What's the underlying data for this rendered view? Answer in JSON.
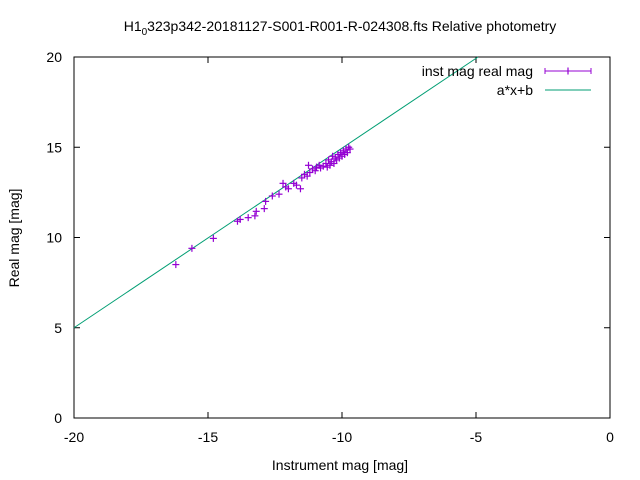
{
  "chart_data": {
    "type": "scatter",
    "title": {
      "prefix": "H1",
      "subscript": "0",
      "suffix": "323p342-20181127-S001-R001-R-024308.fts Relative photometry"
    },
    "xlabel": "Instrument mag [mag]",
    "ylabel": "Real mag [mag]",
    "xlim": [
      -20,
      0
    ],
    "ylim": [
      0,
      20
    ],
    "xticks": [
      -20,
      -15,
      -10,
      -5,
      0
    ],
    "yticks": [
      0,
      5,
      10,
      15,
      20
    ],
    "grid": false,
    "legend_position": "top-right",
    "series": [
      {
        "name": "inst mag real mag",
        "kind": "points-errorbars",
        "color": "#9400d3",
        "points": [
          [
            -16.2,
            8.5
          ],
          [
            -15.6,
            9.4
          ],
          [
            -14.8,
            9.95
          ],
          [
            -13.9,
            10.9
          ],
          [
            -13.8,
            11.0
          ],
          [
            -13.5,
            11.1
          ],
          [
            -13.25,
            11.2
          ],
          [
            -13.2,
            11.45
          ],
          [
            -12.9,
            11.6
          ],
          [
            -12.85,
            12.0
          ],
          [
            -12.6,
            12.3
          ],
          [
            -12.35,
            12.4
          ],
          [
            -12.2,
            13.0
          ],
          [
            -12.1,
            12.8
          ],
          [
            -12.0,
            12.7
          ],
          [
            -11.8,
            13.0
          ],
          [
            -11.7,
            12.9
          ],
          [
            -11.55,
            12.7
          ],
          [
            -11.5,
            13.3
          ],
          [
            -11.4,
            13.5
          ],
          [
            -11.3,
            13.4
          ],
          [
            -11.25,
            14.0
          ],
          [
            -11.2,
            13.6
          ],
          [
            -11.1,
            13.8
          ],
          [
            -11.0,
            13.7
          ],
          [
            -10.95,
            13.9
          ],
          [
            -10.85,
            14.0
          ],
          [
            -10.8,
            13.85
          ],
          [
            -10.7,
            13.95
          ],
          [
            -10.6,
            14.1
          ],
          [
            -10.55,
            13.9
          ],
          [
            -10.5,
            14.3
          ],
          [
            -10.45,
            14.0
          ],
          [
            -10.4,
            14.2
          ],
          [
            -10.35,
            14.5
          ],
          [
            -10.3,
            14.1
          ],
          [
            -10.25,
            14.4
          ],
          [
            -10.2,
            14.3
          ],
          [
            -10.15,
            14.6
          ],
          [
            -10.1,
            14.4
          ],
          [
            -10.05,
            14.7
          ],
          [
            -10.0,
            14.5
          ],
          [
            -9.95,
            14.8
          ],
          [
            -9.9,
            14.6
          ],
          [
            -9.85,
            14.9
          ],
          [
            -9.8,
            14.7
          ],
          [
            -9.75,
            15.0
          ],
          [
            -9.7,
            14.9
          ]
        ]
      },
      {
        "name": "a*x+b",
        "kind": "line",
        "color": "#009e73",
        "slope": 0.995,
        "intercept": 24.9
      }
    ]
  }
}
